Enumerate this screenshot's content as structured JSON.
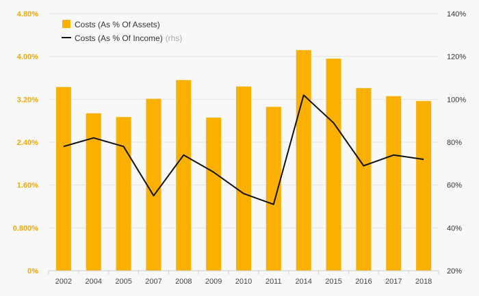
{
  "chart_data": {
    "type": "bar",
    "categories": [
      "2002",
      "2004",
      "2005",
      "2007",
      "2008",
      "2009",
      "2010",
      "2011",
      "2014",
      "2015",
      "2016",
      "2017",
      "2018"
    ],
    "series": [
      {
        "name": "Costs (As % Of Assets)",
        "type": "bar",
        "axis": "left",
        "color": "#f9b000",
        "values": [
          3.43,
          2.94,
          2.87,
          3.21,
          3.56,
          2.86,
          3.44,
          3.06,
          4.12,
          3.96,
          3.41,
          3.26,
          3.17
        ]
      },
      {
        "name": "Costs (As % Of Income)",
        "legend_suffix": "(rhs)",
        "type": "line",
        "axis": "right",
        "color": "#111111",
        "values": [
          78,
          82,
          78,
          55,
          74,
          66,
          56,
          51,
          102,
          89,
          69,
          74,
          72
        ]
      }
    ],
    "y_left": {
      "ylim": [
        0,
        4.8
      ],
      "ticks": [
        0,
        0.8,
        1.6,
        2.4,
        3.2,
        4.0,
        4.8
      ],
      "tick_labels": [
        "0%",
        "0.800%",
        "1.60%",
        "2.40%",
        "3.20%",
        "4.00%",
        "4.80%"
      ],
      "color": "#f0a800"
    },
    "y_right": {
      "ylim": [
        20,
        140
      ],
      "ticks": [
        20,
        40,
        60,
        80,
        100,
        120,
        140
      ],
      "tick_labels": [
        "20%",
        "40%",
        "60%",
        "80%",
        "100%",
        "120%",
        "140%"
      ]
    },
    "grid": true,
    "legend_position": "top-left",
    "title": "",
    "xlabel": "",
    "ylabel": ""
  }
}
